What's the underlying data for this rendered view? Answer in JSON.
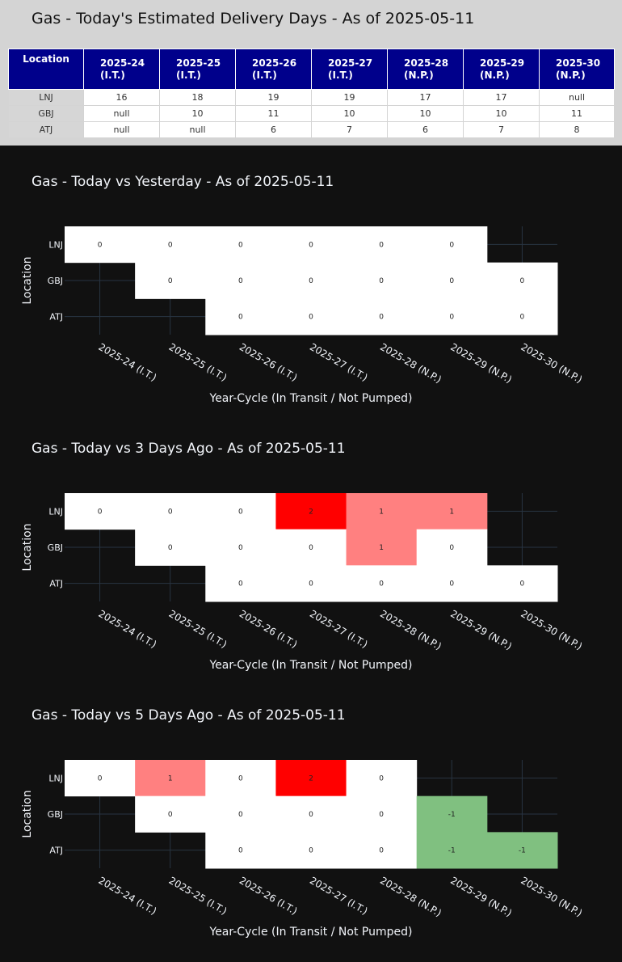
{
  "estimate": {
    "title": "Gas - Today's Estimated Delivery Days - As of 2025-05-11",
    "location_header": "Location",
    "columns": [
      {
        "year": "2025-24",
        "status": "(I.T.)"
      },
      {
        "year": "2025-25",
        "status": "(I.T.)"
      },
      {
        "year": "2025-26",
        "status": "(I.T.)"
      },
      {
        "year": "2025-27",
        "status": "(I.T.)"
      },
      {
        "year": "2025-28",
        "status": "(N.P.)"
      },
      {
        "year": "2025-29",
        "status": "(N.P.)"
      },
      {
        "year": "2025-30",
        "status": "(N.P.)"
      }
    ],
    "rows": [
      {
        "location": "LNJ",
        "values": [
          "16",
          "18",
          "19",
          "19",
          "17",
          "17",
          "null"
        ]
      },
      {
        "location": "GBJ",
        "values": [
          "null",
          "10",
          "11",
          "10",
          "10",
          "10",
          "11"
        ]
      },
      {
        "location": "ATJ",
        "values": [
          "null",
          "null",
          "6",
          "7",
          "6",
          "7",
          "8"
        ]
      }
    ]
  },
  "colors": {
    "header_bg": "#00008b",
    "zero": "#ffffff",
    "plus1": "#ff8080",
    "plus2": "#ff0000",
    "minus1": "#80c080",
    "page_bg": "#111111",
    "grid": "#283442"
  },
  "chart_data": [
    {
      "type": "heatmap",
      "title": "Gas - Today vs Yesterday - As of 2025-05-11",
      "xlabel": "Year-Cycle (In Transit / Not Pumped)",
      "ylabel": "Location",
      "x": [
        "2025-24 (I.T.)",
        "2025-25 (I.T.)",
        "2025-26 (I.T.)",
        "2025-27 (I.T.)",
        "2025-28 (N.P.)",
        "2025-29 (N.P.)",
        "2025-30 (N.P.)"
      ],
      "y": [
        "LNJ",
        "GBJ",
        "ATJ"
      ],
      "z": [
        [
          0,
          0,
          0,
          0,
          0,
          0,
          null
        ],
        [
          null,
          0,
          0,
          0,
          0,
          0,
          0
        ],
        [
          null,
          null,
          0,
          0,
          0,
          0,
          0
        ]
      ]
    },
    {
      "type": "heatmap",
      "title": "Gas - Today vs 3 Days Ago - As of 2025-05-11",
      "xlabel": "Year-Cycle (In Transit / Not Pumped)",
      "ylabel": "Location",
      "x": [
        "2025-24 (I.T.)",
        "2025-25 (I.T.)",
        "2025-26 (I.T.)",
        "2025-27 (I.T.)",
        "2025-28 (N.P.)",
        "2025-29 (N.P.)",
        "2025-30 (N.P.)"
      ],
      "y": [
        "LNJ",
        "GBJ",
        "ATJ"
      ],
      "z": [
        [
          0,
          0,
          0,
          2,
          1,
          1,
          null
        ],
        [
          null,
          0,
          0,
          0,
          1,
          0,
          null
        ],
        [
          null,
          null,
          0,
          0,
          0,
          0,
          0
        ]
      ]
    },
    {
      "type": "heatmap",
      "title": "Gas - Today vs 5 Days Ago - As of 2025-05-11",
      "xlabel": "Year-Cycle (In Transit / Not Pumped)",
      "ylabel": "Location",
      "x": [
        "2025-24 (I.T.)",
        "2025-25 (I.T.)",
        "2025-26 (I.T.)",
        "2025-27 (I.T.)",
        "2025-28 (N.P.)",
        "2025-29 (N.P.)",
        "2025-30 (N.P.)"
      ],
      "y": [
        "LNJ",
        "GBJ",
        "ATJ"
      ],
      "z": [
        [
          0,
          1,
          0,
          2,
          0,
          null,
          null
        ],
        [
          null,
          0,
          0,
          0,
          0,
          -1,
          null
        ],
        [
          null,
          null,
          0,
          0,
          0,
          -1,
          -1
        ]
      ]
    }
  ]
}
